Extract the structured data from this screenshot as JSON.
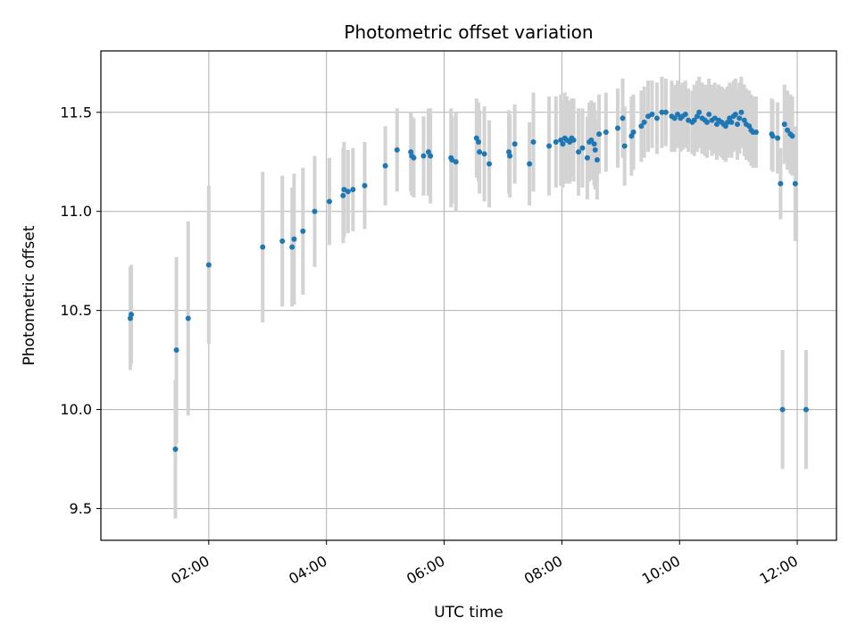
{
  "chart_data": {
    "type": "scatter",
    "title": "Photometric offset variation",
    "xlabel": "UTC time",
    "ylabel": "Photometric offset",
    "x_ticks": [
      "02:00",
      "04:00",
      "06:00",
      "08:00",
      "10:00",
      "12:00"
    ],
    "y_ticks": [
      "9.5",
      "10.0",
      "10.5",
      "11.0",
      "11.5"
    ],
    "xlim": [
      "00:10",
      "12:40"
    ],
    "ylim": [
      9.34,
      11.81
    ],
    "grid": true,
    "marker_color": "#1f77b4",
    "errorbar_color": "#d3d3d3",
    "series": [
      {
        "x": [
          "00:40",
          "00:41",
          "01:26",
          "01:27",
          "01:39",
          "02:00",
          "02:55",
          "03:15",
          "03:25",
          "03:27",
          "03:36",
          "03:48",
          "04:03",
          "04:17",
          "04:18",
          "04:22",
          "04:27",
          "04:39",
          "05:00",
          "05:12",
          "05:26",
          "05:27",
          "05:29",
          "05:39",
          "05:44",
          "05:46",
          "06:07",
          "06:08",
          "06:12",
          "06:33",
          "06:35",
          "06:36",
          "06:41",
          "06:46",
          "07:06",
          "07:07",
          "07:12",
          "07:27",
          "07:31",
          "07:47",
          "07:54",
          "07:59",
          "08:01",
          "08:03",
          "08:05",
          "08:08",
          "08:10",
          "08:12",
          "08:17",
          "08:21",
          "08:26",
          "08:28",
          "08:30",
          "08:33",
          "08:34",
          "08:36",
          "08:38",
          "08:45",
          "08:57",
          "09:02",
          "09:04",
          "09:11",
          "09:13",
          "09:21",
          "09:24",
          "09:28",
          "09:32",
          "09:37",
          "09:42",
          "09:46",
          "09:52",
          "09:55",
          "09:58",
          "10:01",
          "10:03",
          "10:06",
          "10:09",
          "10:13",
          "10:15",
          "10:18",
          "10:20",
          "10:23",
          "10:26",
          "10:28",
          "10:30",
          "10:33",
          "10:36",
          "10:38",
          "10:40",
          "10:43",
          "10:45",
          "10:47",
          "10:49",
          "10:51",
          "10:53",
          "10:55",
          "10:57",
          "10:59",
          "11:01",
          "11:03",
          "11:06",
          "11:08",
          "11:11",
          "11:13",
          "11:15",
          "11:18",
          "11:34",
          "11:35",
          "11:40",
          "11:43",
          "11:45",
          "11:47",
          "11:50",
          "11:53",
          "11:55",
          "11:58",
          "12:09"
        ],
        "y": [
          10.46,
          10.48,
          9.8,
          10.3,
          10.46,
          10.73,
          10.82,
          10.85,
          10.82,
          10.86,
          10.9,
          11.0,
          11.05,
          11.08,
          11.11,
          11.1,
          11.11,
          11.13,
          11.23,
          11.31,
          11.3,
          11.28,
          11.27,
          11.28,
          11.3,
          11.28,
          11.27,
          11.26,
          11.25,
          11.37,
          11.35,
          11.3,
          11.29,
          11.24,
          11.3,
          11.28,
          11.34,
          11.24,
          11.35,
          11.33,
          11.35,
          11.36,
          11.34,
          11.37,
          11.36,
          11.35,
          11.37,
          11.36,
          11.3,
          11.32,
          11.27,
          11.35,
          11.36,
          11.34,
          11.31,
          11.26,
          11.39,
          11.4,
          11.42,
          11.47,
          11.33,
          11.38,
          11.4,
          11.43,
          11.45,
          11.48,
          11.49,
          11.47,
          11.5,
          11.5,
          11.48,
          11.47,
          11.49,
          11.47,
          11.48,
          11.49,
          11.46,
          11.45,
          11.46,
          11.48,
          11.5,
          11.47,
          11.46,
          11.45,
          11.49,
          11.46,
          11.47,
          11.44,
          11.46,
          11.45,
          11.44,
          11.43,
          11.45,
          11.47,
          11.45,
          11.48,
          11.49,
          11.44,
          11.47,
          11.5,
          11.46,
          11.44,
          11.43,
          11.41,
          11.4,
          11.4,
          11.39,
          11.38,
          11.37,
          11.14,
          10.0,
          11.44,
          11.41,
          11.39,
          11.38,
          11.14,
          10.0
        ],
        "err": [
          0.26,
          0.25,
          0.35,
          0.47,
          0.49,
          0.4,
          0.38,
          0.33,
          0.3,
          0.33,
          0.32,
          0.28,
          0.22,
          0.24,
          0.24,
          0.21,
          0.21,
          0.22,
          0.2,
          0.21,
          0.2,
          0.2,
          0.2,
          0.2,
          0.22,
          0.24,
          0.25,
          0.22,
          0.25,
          0.2,
          0.2,
          0.21,
          0.24,
          0.22,
          0.21,
          0.21,
          0.2,
          0.21,
          0.25,
          0.25,
          0.23,
          0.23,
          0.22,
          0.23,
          0.22,
          0.21,
          0.2,
          0.21,
          0.22,
          0.2,
          0.21,
          0.2,
          0.2,
          0.21,
          0.2,
          0.2,
          0.2,
          0.2,
          0.2,
          0.2,
          0.2,
          0.2,
          0.19,
          0.18,
          0.18,
          0.18,
          0.17,
          0.18,
          0.18,
          0.17,
          0.18,
          0.17,
          0.17,
          0.17,
          0.17,
          0.17,
          0.16,
          0.16,
          0.18,
          0.18,
          0.18,
          0.18,
          0.18,
          0.18,
          0.18,
          0.18,
          0.18,
          0.18,
          0.18,
          0.18,
          0.18,
          0.18,
          0.18,
          0.18,
          0.18,
          0.18,
          0.18,
          0.18,
          0.18,
          0.18,
          0.18,
          0.18,
          0.18,
          0.18,
          0.18,
          0.18,
          0.18,
          0.18,
          0.18,
          0.18,
          0.3,
          0.2,
          0.2,
          0.2,
          0.2,
          0.29,
          0.3
        ]
      }
    ]
  }
}
